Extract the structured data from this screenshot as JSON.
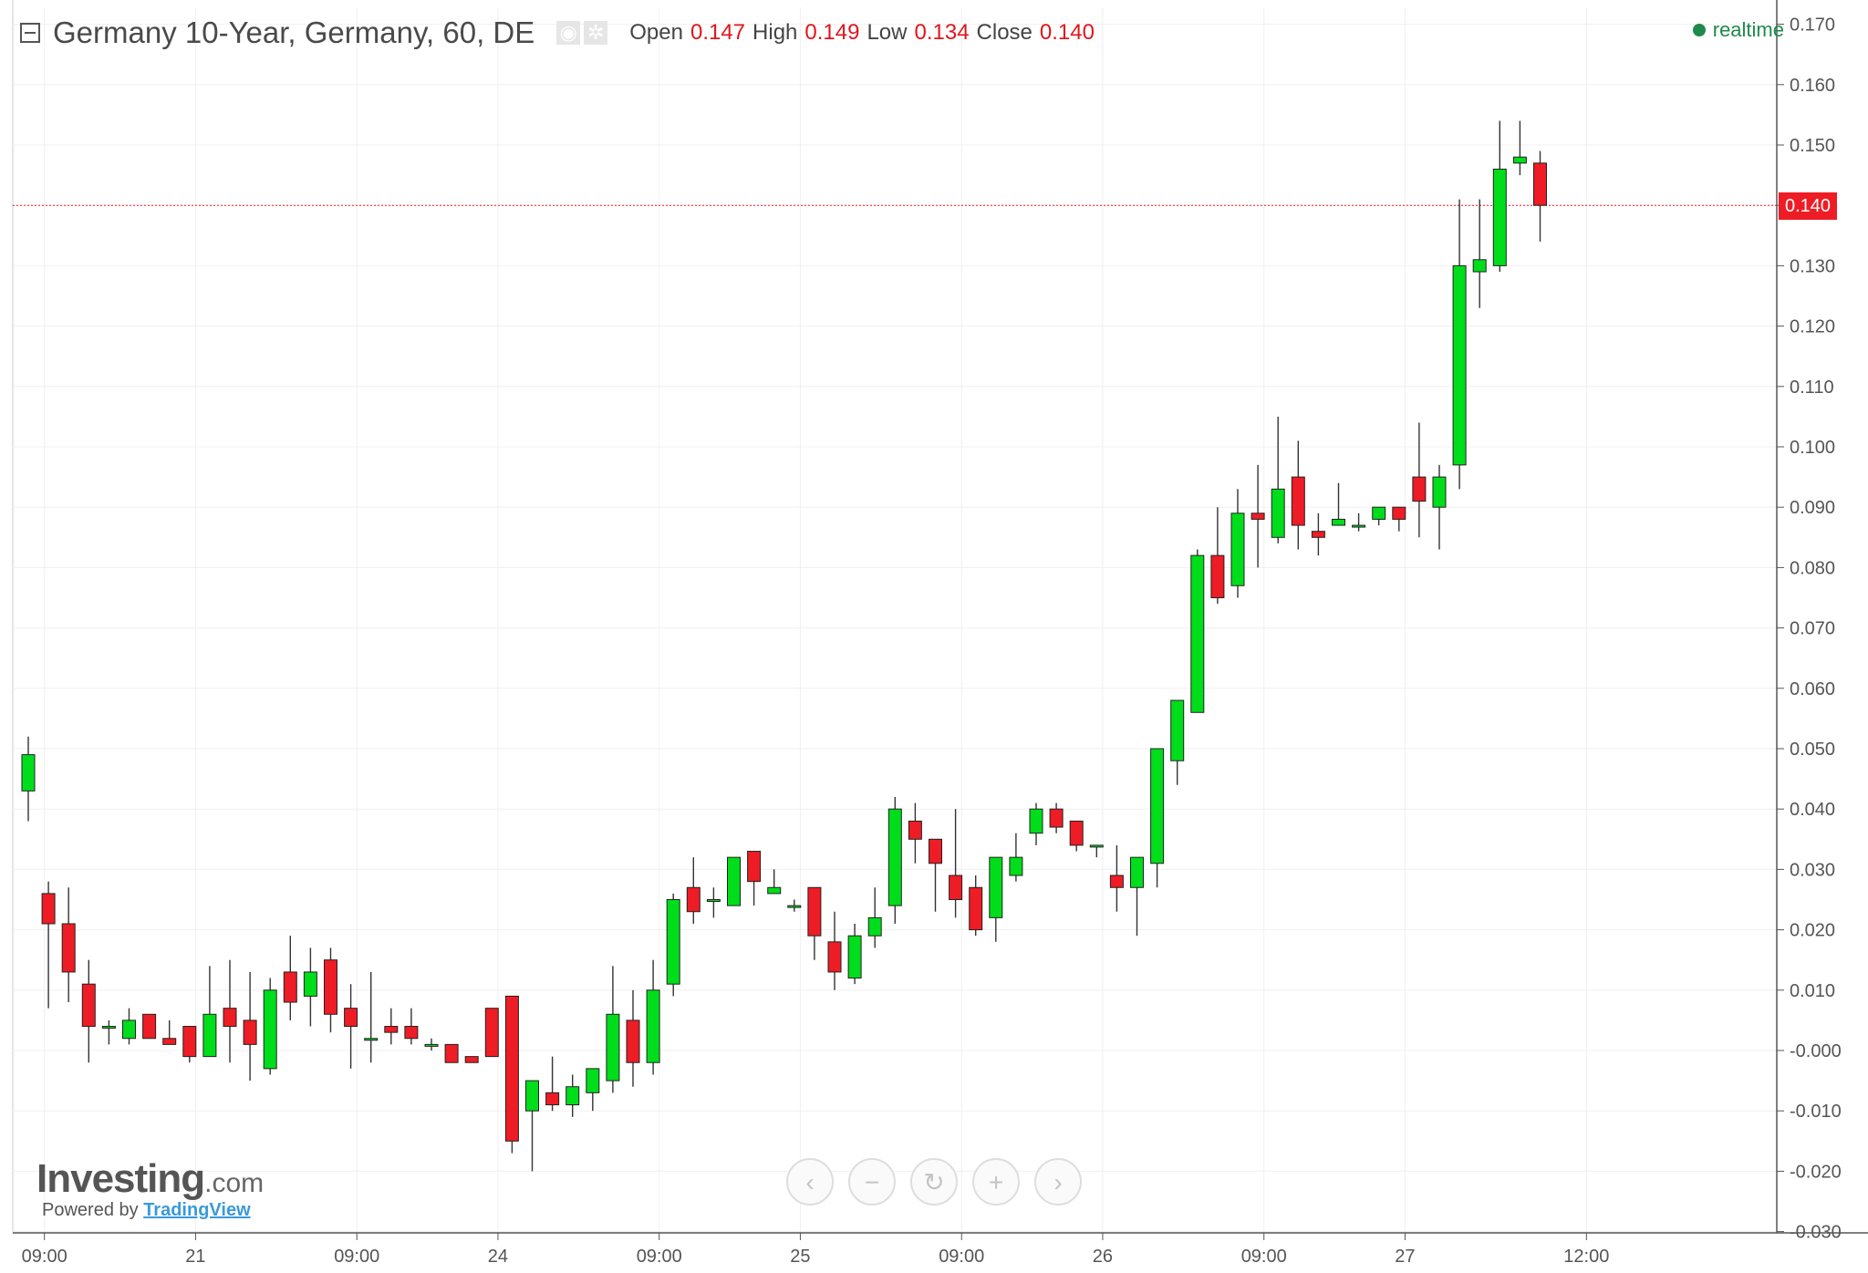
{
  "header": {
    "title": "Germany 10-Year, Germany, 60, DE",
    "open_label": "Open",
    "open_value": "0.147",
    "high_label": "High",
    "high_value": "0.149",
    "low_label": "Low",
    "low_value": "0.134",
    "close_label": "Close",
    "close_value": "0.140",
    "icons": [
      "eye-icon",
      "gear-icon"
    ]
  },
  "realtime": "realtime",
  "price_badge": "0.140",
  "branding": {
    "logo_main": "Investing",
    "logo_suffix": ".com",
    "powered_by": "Powered by",
    "powered_link": "TradingView"
  },
  "nav_buttons": [
    {
      "name": "scroll-left-button",
      "icon": "chevron-left-icon",
      "glyph": "‹"
    },
    {
      "name": "zoom-out-button",
      "icon": "minus-icon",
      "glyph": "−"
    },
    {
      "name": "reset-button",
      "icon": "refresh-icon",
      "glyph": "↻"
    },
    {
      "name": "zoom-in-button",
      "icon": "plus-icon",
      "glyph": "+"
    },
    {
      "name": "scroll-right-button",
      "icon": "chevron-right-icon",
      "glyph": "›"
    }
  ],
  "colors": {
    "up": "#00dd1b",
    "down": "#ee1c25",
    "wick": "#333333",
    "price_line": "#ee1c25",
    "grid": "#f0f0f0"
  },
  "chart_data": {
    "type": "candlestick",
    "title": "Germany 10-Year, Germany, 60, DE",
    "y_ticks": [
      "0.170",
      "0.160",
      "0.150",
      "0.140",
      "0.130",
      "0.120",
      "0.110",
      "0.100",
      "0.090",
      "0.080",
      "0.070",
      "0.060",
      "0.050",
      "0.040",
      "0.030",
      "0.020",
      "0.010",
      "-0.000",
      "-0.010",
      "-0.020",
      "-0.030"
    ],
    "ylim": [
      -0.03,
      0.172
    ],
    "x_ticks": [
      "09:00",
      "21",
      "09:00",
      "24",
      "09:00",
      "25",
      "09:00",
      "26",
      "09:00",
      "27",
      "12:00"
    ],
    "x_tick_bar_index": [
      0.8,
      8.3,
      16.3,
      23.3,
      31.3,
      38.3,
      46.3,
      53.3,
      61.3,
      68.3,
      77.3
    ],
    "grid": true,
    "current_price": 0.14,
    "candles": [
      {
        "o": 0.043,
        "h": 0.052,
        "l": 0.038,
        "c": 0.049
      },
      {
        "o": 0.026,
        "h": 0.028,
        "l": 0.007,
        "c": 0.021
      },
      {
        "o": 0.021,
        "h": 0.027,
        "l": 0.008,
        "c": 0.013
      },
      {
        "o": 0.011,
        "h": 0.015,
        "l": -0.002,
        "c": 0.004
      },
      {
        "o": 0.004,
        "h": 0.005,
        "l": 0.001,
        "c": 0.004
      },
      {
        "o": 0.002,
        "h": 0.007,
        "l": 0.001,
        "c": 0.005
      },
      {
        "o": 0.006,
        "h": 0.006,
        "l": 0.002,
        "c": 0.002
      },
      {
        "o": 0.002,
        "h": 0.005,
        "l": 0.001,
        "c": 0.001
      },
      {
        "o": 0.004,
        "h": 0.004,
        "l": -0.002,
        "c": -0.001
      },
      {
        "o": -0.001,
        "h": 0.014,
        "l": -0.001,
        "c": 0.006
      },
      {
        "o": 0.007,
        "h": 0.015,
        "l": -0.002,
        "c": 0.004
      },
      {
        "o": 0.005,
        "h": 0.013,
        "l": -0.005,
        "c": 0.001
      },
      {
        "o": -0.003,
        "h": 0.012,
        "l": -0.004,
        "c": 0.01
      },
      {
        "o": 0.013,
        "h": 0.019,
        "l": 0.005,
        "c": 0.008
      },
      {
        "o": 0.009,
        "h": 0.017,
        "l": 0.004,
        "c": 0.013
      },
      {
        "o": 0.015,
        "h": 0.017,
        "l": 0.003,
        "c": 0.006
      },
      {
        "o": 0.007,
        "h": 0.011,
        "l": -0.003,
        "c": 0.004
      },
      {
        "o": 0.002,
        "h": 0.013,
        "l": -0.002,
        "c": 0.002
      },
      {
        "o": 0.004,
        "h": 0.007,
        "l": 0.001,
        "c": 0.003
      },
      {
        "o": 0.004,
        "h": 0.007,
        "l": 0.001,
        "c": 0.002
      },
      {
        "o": 0.001,
        "h": 0.002,
        "l": 0.0,
        "c": 0.001
      },
      {
        "o": 0.001,
        "h": 0.001,
        "l": -0.002,
        "c": -0.002
      },
      {
        "o": -0.001,
        "h": -0.001,
        "l": -0.002,
        "c": -0.002
      },
      {
        "o": 0.007,
        "h": 0.007,
        "l": -0.001,
        "c": -0.001
      },
      {
        "o": 0.009,
        "h": 0.009,
        "l": -0.017,
        "c": -0.015
      },
      {
        "o": -0.01,
        "h": -0.005,
        "l": -0.02,
        "c": -0.005
      },
      {
        "o": -0.007,
        "h": -0.001,
        "l": -0.01,
        "c": -0.009
      },
      {
        "o": -0.009,
        "h": -0.004,
        "l": -0.011,
        "c": -0.006
      },
      {
        "o": -0.007,
        "h": -0.003,
        "l": -0.01,
        "c": -0.003
      },
      {
        "o": -0.005,
        "h": 0.014,
        "l": -0.007,
        "c": 0.006
      },
      {
        "o": 0.005,
        "h": 0.01,
        "l": -0.006,
        "c": -0.002
      },
      {
        "o": -0.002,
        "h": 0.015,
        "l": -0.004,
        "c": 0.01
      },
      {
        "o": 0.011,
        "h": 0.026,
        "l": 0.009,
        "c": 0.025
      },
      {
        "o": 0.027,
        "h": 0.032,
        "l": 0.021,
        "c": 0.023
      },
      {
        "o": 0.025,
        "h": 0.027,
        "l": 0.022,
        "c": 0.025
      },
      {
        "o": 0.024,
        "h": 0.032,
        "l": 0.024,
        "c": 0.032
      },
      {
        "o": 0.033,
        "h": 0.033,
        "l": 0.024,
        "c": 0.028
      },
      {
        "o": 0.026,
        "h": 0.03,
        "l": 0.026,
        "c": 0.027
      },
      {
        "o": 0.024,
        "h": 0.025,
        "l": 0.023,
        "c": 0.024
      },
      {
        "o": 0.027,
        "h": 0.027,
        "l": 0.015,
        "c": 0.019
      },
      {
        "o": 0.018,
        "h": 0.023,
        "l": 0.01,
        "c": 0.013
      },
      {
        "o": 0.012,
        "h": 0.021,
        "l": 0.011,
        "c": 0.019
      },
      {
        "o": 0.019,
        "h": 0.027,
        "l": 0.017,
        "c": 0.022
      },
      {
        "o": 0.024,
        "h": 0.042,
        "l": 0.021,
        "c": 0.04
      },
      {
        "o": 0.038,
        "h": 0.041,
        "l": 0.031,
        "c": 0.035
      },
      {
        "o": 0.035,
        "h": 0.035,
        "l": 0.023,
        "c": 0.031
      },
      {
        "o": 0.029,
        "h": 0.04,
        "l": 0.022,
        "c": 0.025
      },
      {
        "o": 0.027,
        "h": 0.029,
        "l": 0.019,
        "c": 0.02
      },
      {
        "o": 0.022,
        "h": 0.032,
        "l": 0.018,
        "c": 0.032
      },
      {
        "o": 0.029,
        "h": 0.036,
        "l": 0.028,
        "c": 0.032
      },
      {
        "o": 0.036,
        "h": 0.041,
        "l": 0.034,
        "c": 0.04
      },
      {
        "o": 0.04,
        "h": 0.041,
        "l": 0.036,
        "c": 0.037
      },
      {
        "o": 0.038,
        "h": 0.038,
        "l": 0.033,
        "c": 0.034
      },
      {
        "o": 0.034,
        "h": 0.034,
        "l": 0.032,
        "c": 0.034
      },
      {
        "o": 0.029,
        "h": 0.034,
        "l": 0.023,
        "c": 0.027
      },
      {
        "o": 0.027,
        "h": 0.032,
        "l": 0.019,
        "c": 0.032
      },
      {
        "o": 0.031,
        "h": 0.05,
        "l": 0.027,
        "c": 0.05
      },
      {
        "o": 0.048,
        "h": 0.058,
        "l": 0.044,
        "c": 0.058
      },
      {
        "o": 0.056,
        "h": 0.083,
        "l": 0.056,
        "c": 0.082
      },
      {
        "o": 0.082,
        "h": 0.09,
        "l": 0.074,
        "c": 0.075
      },
      {
        "o": 0.077,
        "h": 0.093,
        "l": 0.075,
        "c": 0.089
      },
      {
        "o": 0.089,
        "h": 0.097,
        "l": 0.08,
        "c": 0.088
      },
      {
        "o": 0.085,
        "h": 0.105,
        "l": 0.084,
        "c": 0.093
      },
      {
        "o": 0.095,
        "h": 0.101,
        "l": 0.083,
        "c": 0.087
      },
      {
        "o": 0.086,
        "h": 0.089,
        "l": 0.082,
        "c": 0.085
      },
      {
        "o": 0.087,
        "h": 0.094,
        "l": 0.087,
        "c": 0.088
      },
      {
        "o": 0.087,
        "h": 0.089,
        "l": 0.086,
        "c": 0.087
      },
      {
        "o": 0.088,
        "h": 0.09,
        "l": 0.087,
        "c": 0.09
      },
      {
        "o": 0.09,
        "h": 0.09,
        "l": 0.086,
        "c": 0.088
      },
      {
        "o": 0.095,
        "h": 0.104,
        "l": 0.085,
        "c": 0.091
      },
      {
        "o": 0.09,
        "h": 0.097,
        "l": 0.083,
        "c": 0.095
      },
      {
        "o": 0.097,
        "h": 0.141,
        "l": 0.093,
        "c": 0.13
      },
      {
        "o": 0.129,
        "h": 0.141,
        "l": 0.123,
        "c": 0.131
      },
      {
        "o": 0.13,
        "h": 0.154,
        "l": 0.129,
        "c": 0.146
      },
      {
        "o": 0.147,
        "h": 0.154,
        "l": 0.145,
        "c": 0.148
      },
      {
        "o": 0.147,
        "h": 0.149,
        "l": 0.134,
        "c": 0.14
      }
    ]
  }
}
